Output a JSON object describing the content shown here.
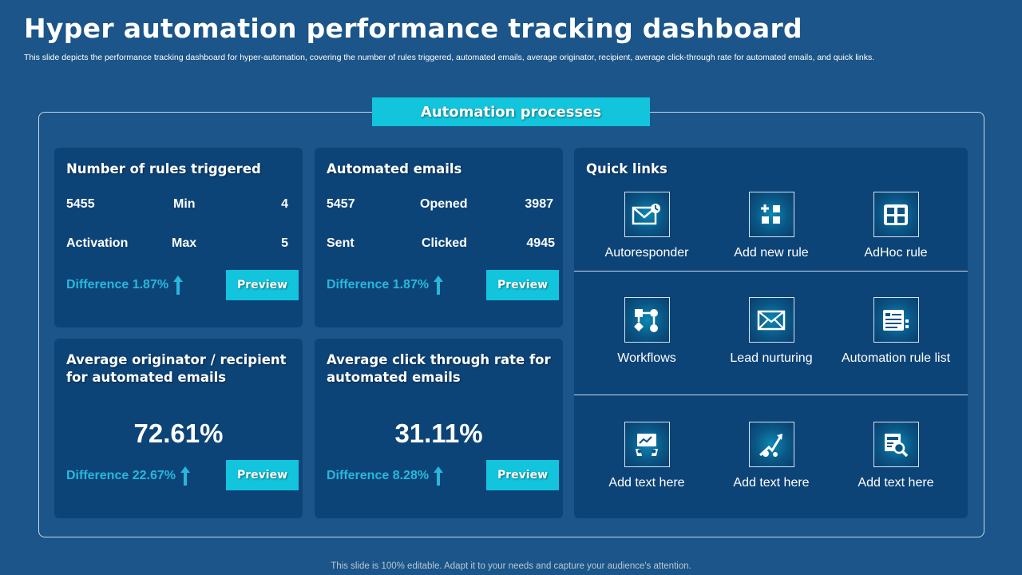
{
  "header": {
    "title": "Hyper automation performance tracking dashboard",
    "subtitle": "This slide depicts the performance tracking dashboard for hyper-automation, covering the number of rules triggered, automated emails, average originator, recipient, average click-through rate for automated emails, and quick links."
  },
  "section_label": "Automation processes",
  "rules_card": {
    "title": "Number of rules triggered",
    "row1": {
      "value": "5455",
      "label": "Min",
      "number": "4"
    },
    "row2": {
      "value": "Activation",
      "label": "Max",
      "number": "5"
    },
    "difference": "Difference 1.87%",
    "button": "Preview"
  },
  "emails_card": {
    "title": "Automated emails",
    "row1": {
      "value": "5457",
      "label": "Opened",
      "number": "3987"
    },
    "row2": {
      "value": "Sent",
      "label": "Clicked",
      "number": "4945"
    },
    "difference": "Difference 1.87%",
    "button": "Preview"
  },
  "originator_card": {
    "title": "Average originator / recipient for automated emails",
    "value": "72.61%",
    "difference": "Difference 22.67%",
    "button": "Preview"
  },
  "ctr_card": {
    "title": "Average click through rate for automated emails",
    "value": "31.11%",
    "difference": "Difference 8.28%",
    "button": "Preview"
  },
  "quick_links": {
    "title": "Quick links",
    "items": [
      {
        "label": "Autoresponder",
        "icon": "autoresponder-icon"
      },
      {
        "label": "Add new rule",
        "icon": "add-rule-icon"
      },
      {
        "label": "AdHoc rule",
        "icon": "adhoc-rule-icon"
      },
      {
        "label": "Workflows",
        "icon": "workflow-icon"
      },
      {
        "label": "Lead nurturing",
        "icon": "envelope-icon"
      },
      {
        "label": "Automation rule list",
        "icon": "rule-list-icon"
      },
      {
        "label": "Add text here",
        "icon": "dashboard-icon"
      },
      {
        "label": "Add text here",
        "icon": "growth-chart-icon"
      },
      {
        "label": "Add text here",
        "icon": "search-analytics-icon"
      }
    ]
  },
  "footer": "This slide is 100% editable. Adapt it to your needs and capture your audience's attention.",
  "colors": {
    "background": "#1b5589",
    "card": "#0d4478",
    "accent": "#12c4dc",
    "difference_text": "#27b8dc"
  }
}
